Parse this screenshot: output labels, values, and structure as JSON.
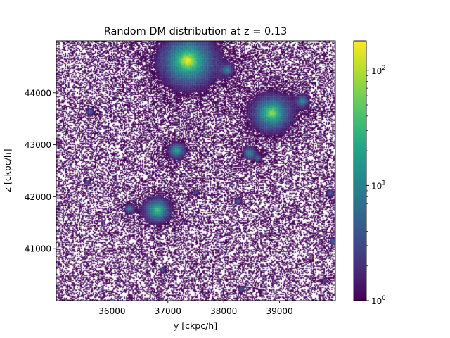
{
  "chart_data": {
    "type": "heatmap",
    "title": "Random DM distribution at z = 0.13",
    "xlabel": "y [ckpc/h]",
    "ylabel": "z [ckpc/h]",
    "xlim": [
      35000,
      40000
    ],
    "ylim": [
      40000,
      45000
    ],
    "x_ticks": [
      36000,
      37000,
      38000,
      39000
    ],
    "y_ticks": [
      41000,
      42000,
      43000,
      44000
    ],
    "colorbar": {
      "scale": "log",
      "range": [
        1,
        180
      ],
      "colormap": "viridis",
      "ticks": [
        {
          "value": 1,
          "base": "10",
          "exp": "0"
        },
        {
          "value": 10,
          "base": "10",
          "exp": "1"
        },
        {
          "value": 100,
          "base": "10",
          "exp": "2"
        }
      ]
    },
    "background_color": "#ffffff",
    "halos": [
      {
        "x": 37350,
        "y": 44620,
        "peak": 180
      },
      {
        "x": 38850,
        "y": 43620,
        "peak": 90
      },
      {
        "x": 36800,
        "y": 41750,
        "peak": 45
      },
      {
        "x": 37150,
        "y": 42900,
        "peak": 20
      },
      {
        "x": 38450,
        "y": 42850,
        "peak": 12
      },
      {
        "x": 39400,
        "y": 43850,
        "peak": 12
      },
      {
        "x": 38050,
        "y": 44450,
        "peak": 10
      },
      {
        "x": 36300,
        "y": 41780,
        "peak": 8
      },
      {
        "x": 35600,
        "y": 43650,
        "peak": 6
      },
      {
        "x": 39900,
        "y": 42080,
        "peak": 6
      },
      {
        "x": 38300,
        "y": 40230,
        "peak": 5
      },
      {
        "x": 38250,
        "y": 41920,
        "peak": 5
      },
      {
        "x": 39950,
        "y": 41150,
        "peak": 6
      },
      {
        "x": 35550,
        "y": 42300,
        "peak": 4
      },
      {
        "x": 38600,
        "y": 42750,
        "peak": 5
      },
      {
        "x": 37500,
        "y": 42100,
        "peak": 4
      },
      {
        "x": 39800,
        "y": 40400,
        "peak": 4
      },
      {
        "x": 36900,
        "y": 40600,
        "peak": 4
      }
    ]
  }
}
